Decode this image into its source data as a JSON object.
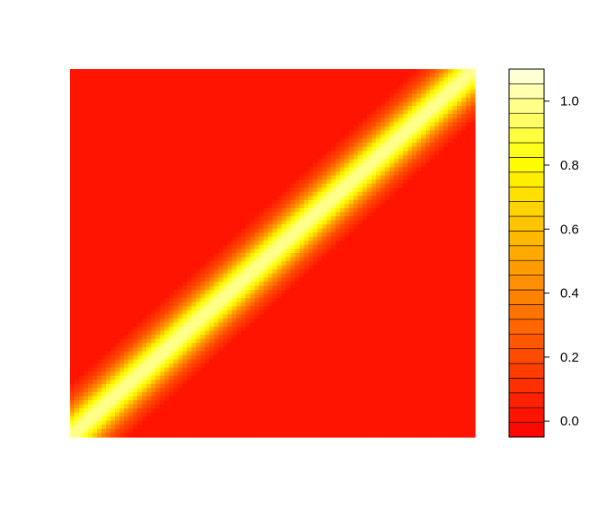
{
  "chart_data": {
    "type": "heatmap",
    "title": "",
    "xlabel": "",
    "ylabel": "",
    "description_of_field": "correlation-style matrix, value 1 on the diagonal decaying smoothly to 0 away from it",
    "matrix_bandwidth": 0.08,
    "colorbar": {
      "palette": "heat",
      "range": [
        -0.05,
        1.1
      ],
      "levels": 25,
      "ticks": [
        {
          "value": 0.0,
          "label": "0.0"
        },
        {
          "value": 0.2,
          "label": "0.2"
        },
        {
          "value": 0.4,
          "label": "0.4"
        },
        {
          "value": 0.6,
          "label": "0.6"
        },
        {
          "value": 0.8,
          "label": "0.8"
        },
        {
          "value": 1.0,
          "label": "1.0"
        }
      ]
    }
  }
}
